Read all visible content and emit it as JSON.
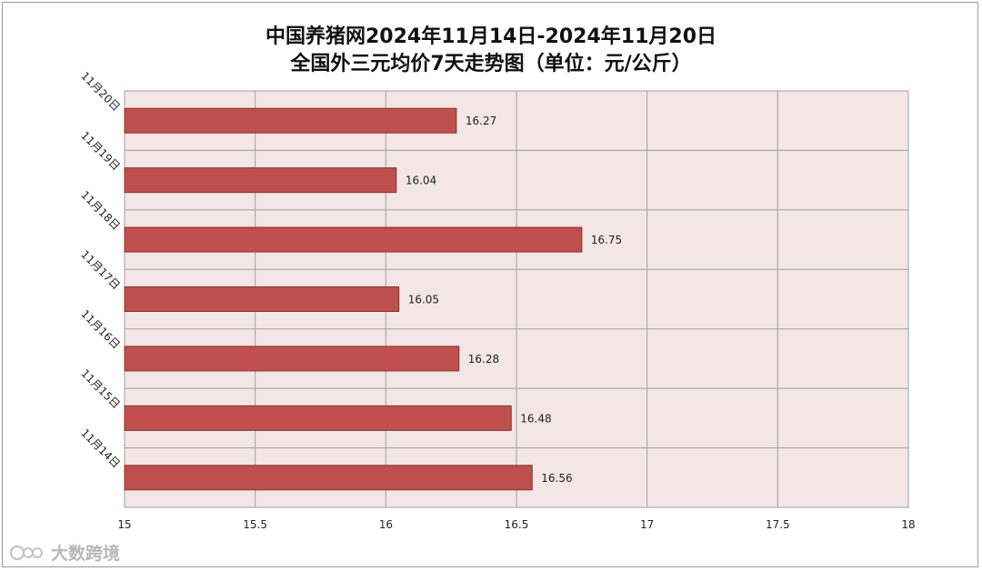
{
  "chart_data": {
    "type": "bar",
    "orientation": "horizontal",
    "title_lines": [
      "中国养猪网2024年11月14日-2024年11月20日",
      "全国外三元均价7天走势图（单位：元/公斤）"
    ],
    "categories": [
      "11月20日",
      "11月19日",
      "11月18日",
      "11月17日",
      "11月16日",
      "11月15日",
      "11月14日"
    ],
    "values": [
      16.27,
      16.04,
      16.75,
      16.05,
      16.28,
      16.48,
      16.56
    ],
    "value_labels": [
      "16.27",
      "16.04",
      "16.75",
      "16.05",
      "16.28",
      "16.48",
      "16.56"
    ],
    "xlim": [
      15,
      18
    ],
    "x_ticks": [
      15,
      15.5,
      16,
      16.5,
      17,
      17.5,
      18
    ],
    "x_tick_labels": [
      "15",
      "15.5",
      "16",
      "16.5",
      "17",
      "17.5",
      "18"
    ],
    "grid": true,
    "colors": {
      "bar": "#c0504d",
      "bar_edge": "#8c2f2c",
      "plot_background": "#f2e6e6",
      "grid": "#a0a0a0"
    }
  },
  "watermark": {
    "icon": "logo-icon",
    "text": "大数跨境"
  }
}
